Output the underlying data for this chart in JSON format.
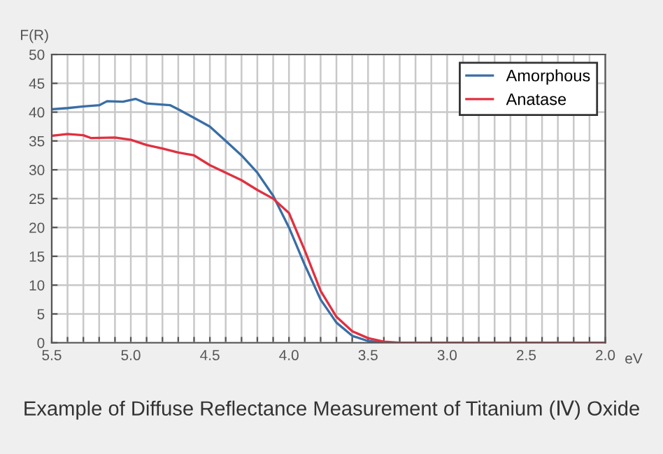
{
  "chart_data": {
    "type": "line",
    "title": "Example of Diffuse Reflectance Measurement of Titanium (Ⅳ) Oxide",
    "xlabel": "eV",
    "ylabel": "F(R)",
    "xlim": [
      5.5,
      2.0
    ],
    "ylim": [
      0,
      50
    ],
    "xticks": [
      5.5,
      {
        "value": 5.4,
        "label": null
      },
      {
        "value": 5.3,
        "label": null
      },
      {
        "value": 5.2,
        "label": null
      },
      {
        "value": 5.1,
        "label": null
      },
      {
        "value": 5.0,
        "label": "5.0"
      },
      {
        "value": 4.9,
        "label": null
      },
      {
        "value": 4.8,
        "label": null
      },
      {
        "value": 4.7,
        "label": null
      },
      {
        "value": 4.6,
        "label": null
      },
      4.5,
      {
        "value": 4.4,
        "label": null
      },
      {
        "value": 4.3,
        "label": null
      },
      {
        "value": 4.2,
        "label": null
      },
      {
        "value": 4.1,
        "label": null
      },
      {
        "value": 4.0,
        "label": "4.0"
      },
      {
        "value": 3.9,
        "label": null
      },
      {
        "value": 3.8,
        "label": null
      },
      {
        "value": 3.7,
        "label": null
      },
      {
        "value": 3.6,
        "label": null
      },
      3.5,
      {
        "value": 3.4,
        "label": null
      },
      {
        "value": 3.3,
        "label": null
      },
      {
        "value": 3.2,
        "label": null
      },
      {
        "value": 3.1,
        "label": null
      },
      {
        "value": 3.0,
        "label": "3.0"
      },
      {
        "value": 2.9,
        "label": null
      },
      {
        "value": 2.8,
        "label": null
      },
      {
        "value": 2.7,
        "label": null
      },
      {
        "value": 2.6,
        "label": null
      },
      2.5,
      {
        "value": 2.4,
        "label": null
      },
      {
        "value": 2.3,
        "label": null
      },
      {
        "value": 2.2,
        "label": null
      },
      {
        "value": 2.1,
        "label": null
      },
      {
        "value": 2.0,
        "label": "2.0"
      }
    ],
    "yticks": [
      0,
      5,
      10,
      15,
      20,
      25,
      30,
      35,
      40,
      45,
      50
    ],
    "grid": true,
    "legend": "top right",
    "line_style": "solid",
    "marker": "none",
    "series": [
      {
        "name": "Amorphous",
        "color": "#3a6ea5",
        "x": [
          5.5,
          5.4,
          5.3,
          5.2,
          5.15,
          5.05,
          4.97,
          4.9,
          4.75,
          4.7,
          4.6,
          4.5,
          4.4,
          4.3,
          4.2,
          4.1,
          4.0,
          3.9,
          3.8,
          3.7,
          3.6,
          3.5,
          3.4,
          2.0
        ],
        "values": [
          40.5,
          40.7,
          41,
          41.2,
          41.9,
          41.8,
          42.3,
          41.5,
          41.2,
          40.5,
          39,
          37.5,
          35,
          32.5,
          29.5,
          25.5,
          20,
          13.5,
          7.5,
          3.5,
          1.2,
          0.3,
          0,
          0
        ]
      },
      {
        "name": "Anatase",
        "color": "#e03040",
        "x": [
          5.5,
          5.4,
          5.3,
          5.25,
          5.1,
          5.0,
          4.9,
          4.8,
          4.7,
          4.6,
          4.5,
          4.4,
          4.3,
          4.2,
          4.1,
          4.0,
          3.9,
          3.8,
          3.7,
          3.6,
          3.5,
          3.4,
          3.3,
          2.0
        ],
        "values": [
          35.9,
          36.2,
          36.0,
          35.5,
          35.6,
          35.2,
          34.3,
          33.7,
          33.0,
          32.5,
          30.8,
          29.5,
          28.2,
          26.5,
          25,
          22.5,
          16,
          9,
          4.5,
          2,
          0.8,
          0.2,
          0,
          0
        ]
      }
    ]
  }
}
